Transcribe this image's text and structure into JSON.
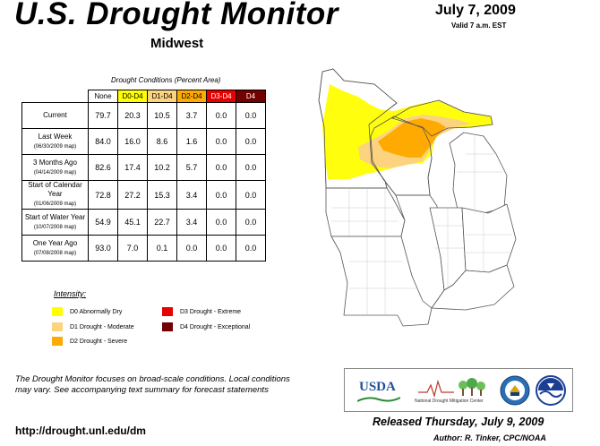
{
  "header": {
    "title": "U.S. Drought Monitor",
    "region": "Midwest",
    "date": "July 7, 2009",
    "valid": "Valid 7 a.m. EST"
  },
  "table": {
    "caption": "Drought Conditions (Percent Area)",
    "columns": [
      {
        "label": "None",
        "color": "#ffffff"
      },
      {
        "label": "D0-D4",
        "color": "#ffff00"
      },
      {
        "label": "D1-D4",
        "color": "#fcd37f"
      },
      {
        "label": "D2-D4",
        "color": "#ffaa00"
      },
      {
        "label": "D3-D4",
        "color": "#e60000"
      },
      {
        "label": "D4",
        "color": "#730000"
      }
    ],
    "rows": [
      {
        "label": "Current",
        "sub": "",
        "values": [
          "79.7",
          "20.3",
          "10.5",
          "3.7",
          "0.0",
          "0.0"
        ]
      },
      {
        "label": "Last Week",
        "sub": "(06/30/2009 map)",
        "values": [
          "84.0",
          "16.0",
          "8.6",
          "1.6",
          "0.0",
          "0.0"
        ]
      },
      {
        "label": "3 Months Ago",
        "sub": "(04/14/2009 map)",
        "values": [
          "82.6",
          "17.4",
          "10.2",
          "5.7",
          "0.0",
          "0.0"
        ]
      },
      {
        "label": "Start of Calendar Year",
        "sub": "(01/06/2009 map)",
        "values": [
          "72.8",
          "27.2",
          "15.3",
          "3.4",
          "0.0",
          "0.0"
        ]
      },
      {
        "label": "Start of Water Year",
        "sub": "(10/07/2008 map)",
        "values": [
          "54.9",
          "45.1",
          "22.7",
          "3.4",
          "0.0",
          "0.0"
        ]
      },
      {
        "label": "One Year Ago",
        "sub": "(07/08/2008 map)",
        "values": [
          "93.0",
          "7.0",
          "0.1",
          "0.0",
          "0.0",
          "0.0"
        ]
      }
    ]
  },
  "legend": {
    "title": "Intensity:",
    "items": [
      {
        "label": "D0 Abnormally Dry",
        "color": "#ffff00"
      },
      {
        "label": "D1 Drought - Moderate",
        "color": "#fcd37f"
      },
      {
        "label": "D2 Drought - Severe",
        "color": "#ffaa00"
      },
      {
        "label": "D3 Drought - Extreme",
        "color": "#e60000"
      },
      {
        "label": "D4 Drought - Exceptional",
        "color": "#730000"
      }
    ]
  },
  "footer": {
    "note": "The Drought Monitor focuses on broad-scale conditions. Local conditions may vary. See accompanying text summary for forecast statements",
    "url": "http://drought.unl.edu/dm",
    "released": "Released Thursday, July 9, 2009",
    "author": "Author: R. Tinker, CPC/NOAA"
  },
  "logos": {
    "usda": "USDA",
    "ndmc": "National Drought Mitigation Center"
  }
}
